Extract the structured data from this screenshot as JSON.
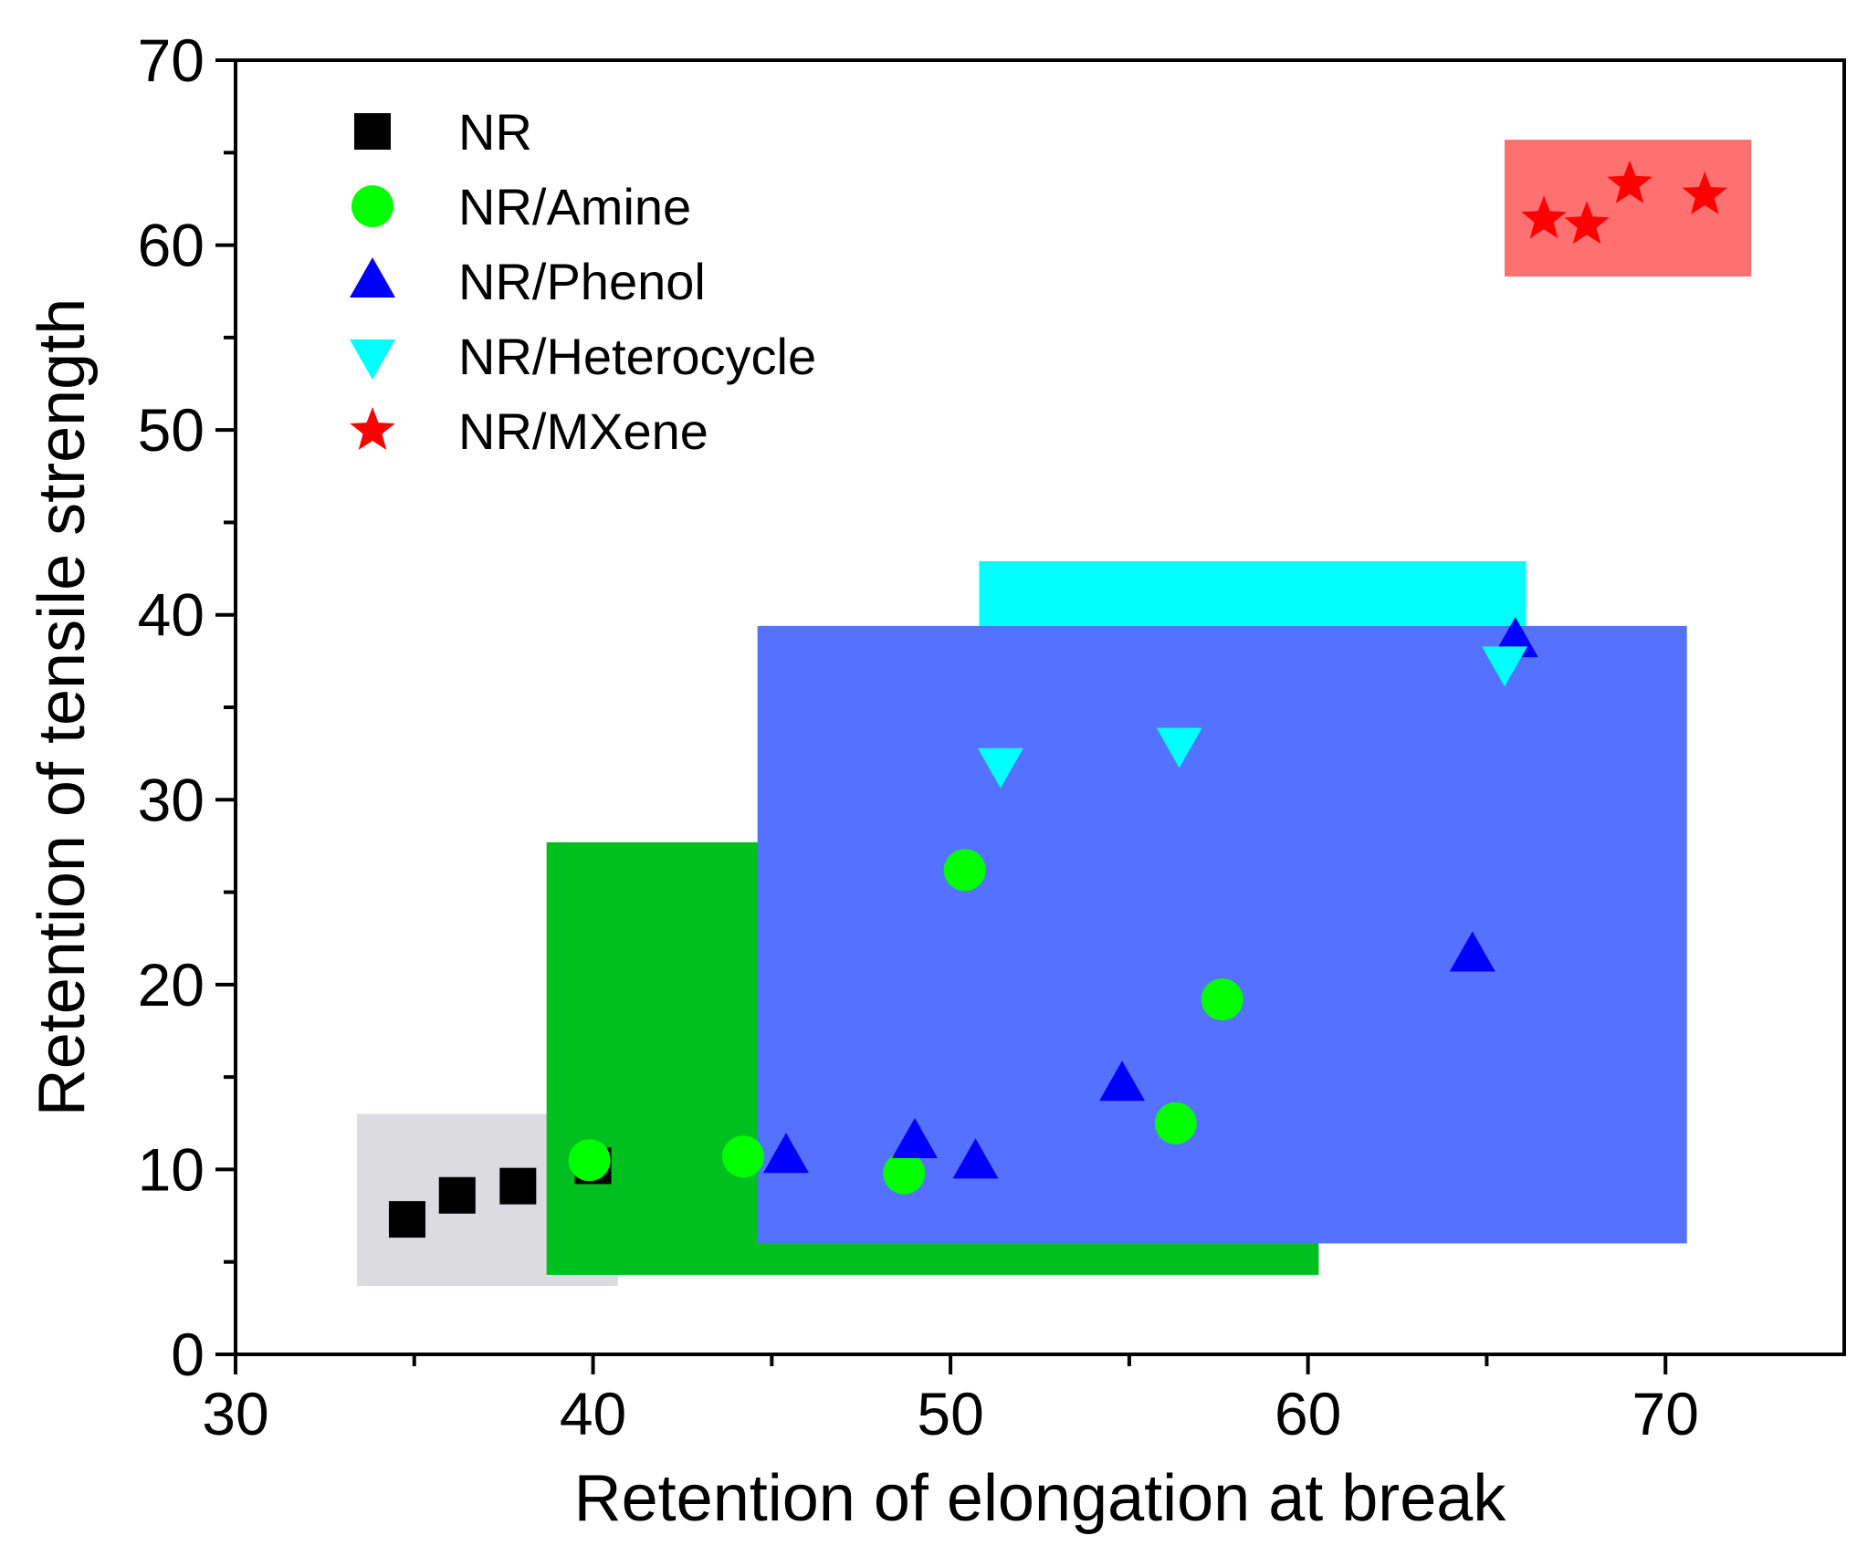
{
  "chart_data": {
    "type": "scatter",
    "title": "",
    "xlabel": "Retention of elongation at break",
    "ylabel": "Retention of tensile strength",
    "xlim": [
      30,
      75
    ],
    "ylim": [
      0,
      70
    ],
    "x_major_ticks": [
      30,
      40,
      50,
      60,
      70
    ],
    "x_minor_ticks": [
      35,
      45,
      55,
      65
    ],
    "y_major_ticks": [
      0,
      10,
      20,
      30,
      40,
      50,
      60,
      70
    ],
    "y_minor_ticks": [
      5,
      15,
      25,
      35,
      45,
      55,
      65
    ],
    "grid": false,
    "legend_position": "top-left",
    "regions": [
      {
        "name": "NR",
        "color": "#dcdce0",
        "x": [
          33.4,
          40.7
        ],
        "y": [
          3.7,
          13.0
        ]
      },
      {
        "name": "NR/Amine",
        "color": "#00c020",
        "x": [
          38.7,
          60.3
        ],
        "y": [
          4.3,
          27.7
        ]
      },
      {
        "name": "NR/Heterocycle",
        "color": "#00ffff",
        "x": [
          50.8,
          66.1
        ],
        "y": [
          39.4,
          42.9
        ]
      },
      {
        "name": "NR/Phenol",
        "color": "#5472ff",
        "x": [
          44.6,
          70.6
        ],
        "y": [
          6.0,
          39.4
        ]
      },
      {
        "name": "NR/MXene",
        "color": "#ff7070",
        "x": [
          65.5,
          72.4
        ],
        "y": [
          58.3,
          65.7
        ]
      }
    ],
    "series": [
      {
        "name": "NR",
        "marker": "square",
        "color": "#000000",
        "points": [
          [
            34.8,
            7.3
          ],
          [
            36.2,
            8.6
          ],
          [
            37.9,
            9.1
          ],
          [
            40.0,
            10.2
          ]
        ]
      },
      {
        "name": "NR/Amine",
        "marker": "circle",
        "color": "#00ff00",
        "points": [
          [
            39.9,
            10.5
          ],
          [
            44.2,
            10.7
          ],
          [
            48.7,
            9.8
          ],
          [
            50.4,
            26.2
          ],
          [
            56.3,
            12.5
          ],
          [
            57.6,
            19.2
          ]
        ]
      },
      {
        "name": "NR/Phenol",
        "marker": "triangle-up",
        "color": "#0000ff",
        "points": [
          [
            45.4,
            10.7
          ],
          [
            49.0,
            11.5
          ],
          [
            50.7,
            10.4
          ],
          [
            54.8,
            14.6
          ],
          [
            64.6,
            21.6
          ],
          [
            65.8,
            38.6
          ]
        ]
      },
      {
        "name": "NR/Heterocycle",
        "marker": "triangle-down",
        "color": "#00ffff",
        "points": [
          [
            51.4,
            31.9
          ],
          [
            56.4,
            33.0
          ],
          [
            65.5,
            37.4
          ]
        ]
      },
      {
        "name": "NR/MXene",
        "marker": "star",
        "color": "#ff0000",
        "points": [
          [
            66.6,
            61.4
          ],
          [
            67.8,
            61.1
          ],
          [
            69.0,
            63.3
          ],
          [
            71.1,
            62.7
          ]
        ]
      }
    ]
  }
}
